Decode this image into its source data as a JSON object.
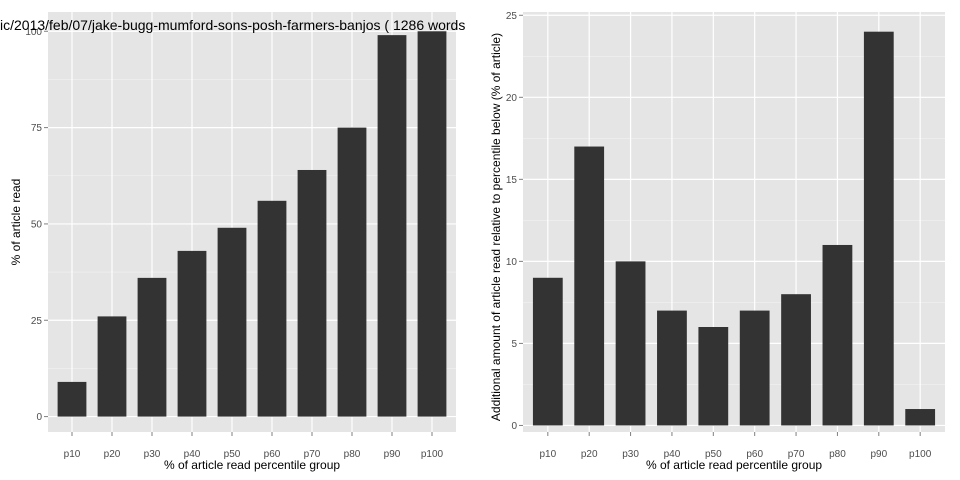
{
  "chart_data": [
    {
      "type": "bar",
      "title": "ic/2013/feb/07/jake-bugg-mumford-sons-posh-farmers-banjos ( 1286 words",
      "xlabel": "% of article read percentile group",
      "ylabel": "% of article read",
      "categories": [
        "p10",
        "p20",
        "p30",
        "p40",
        "p50",
        "p60",
        "p70",
        "p80",
        "p90",
        "p100"
      ],
      "values": [
        9,
        26,
        36,
        43,
        49,
        56,
        64,
        75,
        99,
        100
      ],
      "ylim": [
        -4,
        105
      ],
      "yticks": [
        0,
        25,
        50,
        75,
        100
      ],
      "grid": true,
      "colors": {
        "panel": "#e5e5e5",
        "grid_major": "#ffffff",
        "grid_minor": "#f2f2f2",
        "bar": "#333333"
      }
    },
    {
      "type": "bar",
      "title": "",
      "xlabel": "% of article read percentile group",
      "ylabel": "Additional amount of article read relative to percentile below (% of article)",
      "categories": [
        "p10",
        "p20",
        "p30",
        "p40",
        "p50",
        "p60",
        "p70",
        "p80",
        "p90",
        "p100"
      ],
      "values": [
        9,
        17,
        10,
        7,
        6,
        7,
        8,
        11,
        24,
        1
      ],
      "ylim": [
        -0.4,
        25.2
      ],
      "yticks": [
        0,
        5,
        10,
        15,
        20,
        25
      ],
      "grid": true,
      "colors": {
        "panel": "#e5e5e5",
        "grid_major": "#ffffff",
        "grid_minor": "#f2f2f2",
        "bar": "#333333"
      }
    }
  ]
}
